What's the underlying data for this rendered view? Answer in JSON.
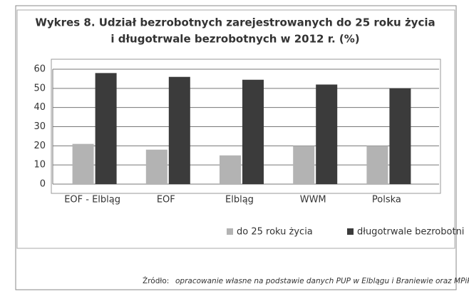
{
  "chart_data": {
    "type": "bar",
    "title": [
      "Wykres 8. Udział bezrobotnych zarejestrowanych do 25 roku życia",
      "i długotrwale bezrobotnych w 2012 r. (%)"
    ],
    "categories": [
      "EOF - Elbląg",
      "EOF",
      "Elbląg",
      "WWM",
      "Polska"
    ],
    "series": [
      {
        "name": "do 25 roku życia",
        "color": "#b3b3b3",
        "values": [
          21,
          18,
          15,
          20,
          20
        ]
      },
      {
        "name": "długotrwale bezrobotni",
        "color": "#3b3b3b",
        "values": [
          58,
          56,
          54.5,
          52,
          50
        ]
      }
    ],
    "ylim": [
      0,
      60
    ],
    "yticks": [
      0,
      10,
      20,
      30,
      40,
      50,
      60
    ],
    "grid": true,
    "legend": "bottom",
    "source": {
      "label": "Źródło:",
      "text": "opracowanie własne na podstawie danych PUP w Elblągu i Braniewie oraz MPiPS."
    }
  }
}
